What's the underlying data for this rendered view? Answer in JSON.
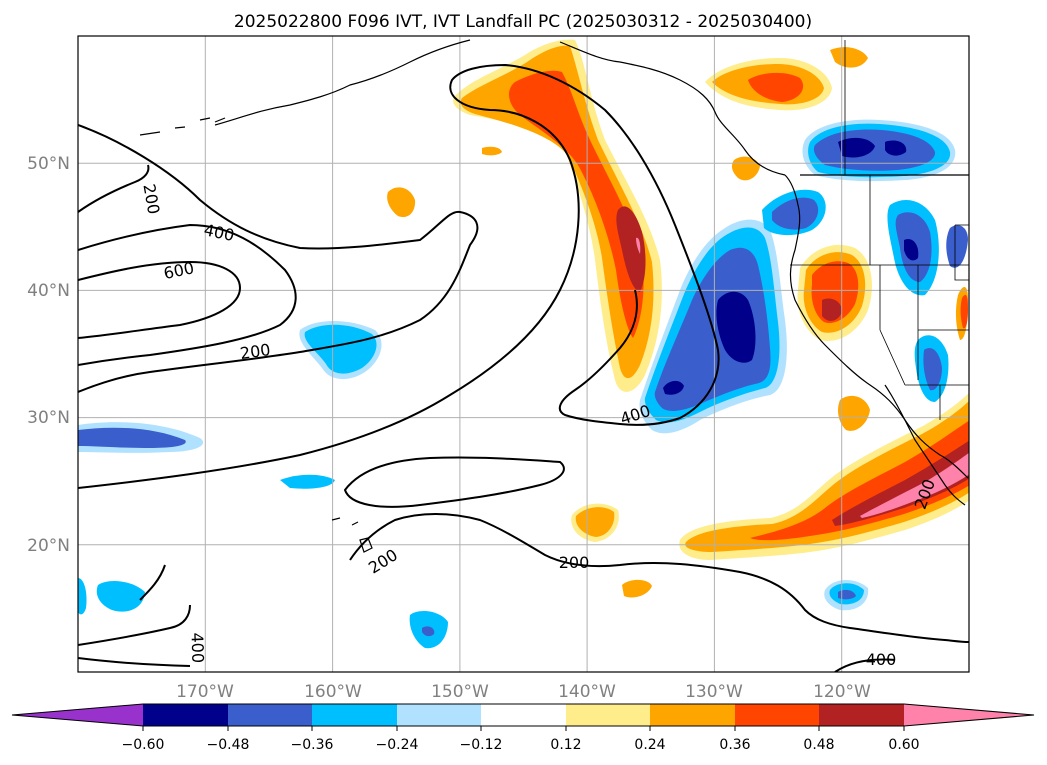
{
  "title": "2025022800 F096 IVT, IVT Landfall PC (2025030312 - 2025030400)",
  "map": {
    "lon_range": [
      -180,
      -110
    ],
    "lat_range": [
      10,
      60
    ],
    "lon_ticks": [
      "170°W",
      "160°W",
      "150°W",
      "140°W",
      "130°W",
      "120°W"
    ],
    "lat_ticks": [
      "50°N",
      "40°N",
      "30°N",
      "20°N"
    ]
  },
  "contour_labels": [
    "200",
    "400",
    "600",
    "200",
    "400",
    "200",
    "200",
    "400",
    "400",
    "200"
  ],
  "colorbar": {
    "ticks": [
      "−0.60",
      "−0.48",
      "−0.36",
      "−0.24",
      "−0.12",
      "0.12",
      "0.24",
      "0.36",
      "0.48",
      "0.60"
    ],
    "colors": {
      "under": "#9932cc",
      "c1": "#00008b",
      "c2": "#3a5fcd",
      "c3": "#00bfff",
      "c4": "#b0e2ff",
      "c5": "#ffffff",
      "c6": "#ffec8b",
      "c7": "#ffa500",
      "c8": "#ff4500",
      "c9": "#b22222",
      "over": "#ff82ab"
    }
  },
  "palette": {
    "pos1": "#ffec8b",
    "pos2": "#ffa500",
    "pos3": "#ff4500",
    "pos4": "#b22222",
    "pos5": "#ff82ab",
    "neg1": "#b0e2ff",
    "neg2": "#00bfff",
    "neg3": "#3a5fcd",
    "neg4": "#00008b"
  }
}
